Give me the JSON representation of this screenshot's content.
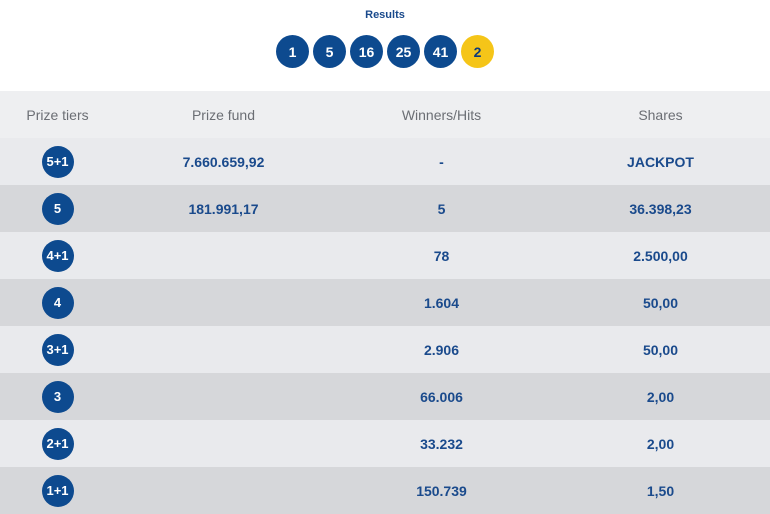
{
  "results": {
    "title": "Results",
    "numbers": [
      "1",
      "5",
      "16",
      "25",
      "41"
    ],
    "star": "2"
  },
  "table": {
    "headers": [
      "Prize tiers",
      "Prize fund",
      "Winners/Hits",
      "Shares"
    ],
    "rows": [
      {
        "tier": "5+1",
        "fund": "7.660.659,92",
        "winners": "-",
        "shares": "JACKPOT"
      },
      {
        "tier": "5",
        "fund": "181.991,17",
        "winners": "5",
        "shares": "36.398,23"
      },
      {
        "tier": "4+1",
        "fund": "",
        "winners": "78",
        "shares": "2.500,00"
      },
      {
        "tier": "4",
        "fund": "",
        "winners": "1.604",
        "shares": "50,00"
      },
      {
        "tier": "3+1",
        "fund": "",
        "winners": "2.906",
        "shares": "50,00"
      },
      {
        "tier": "3",
        "fund": "",
        "winners": "66.006",
        "shares": "2,00"
      },
      {
        "tier": "2+1",
        "fund": "",
        "winners": "33.232",
        "shares": "2,00"
      },
      {
        "tier": "1+1",
        "fund": "",
        "winners": "150.739",
        "shares": "1,50"
      }
    ]
  },
  "colors": {
    "ball_blue": "#0d4a8f",
    "star_yellow": "#f5c518",
    "text_blue": "#1a4a8c"
  }
}
